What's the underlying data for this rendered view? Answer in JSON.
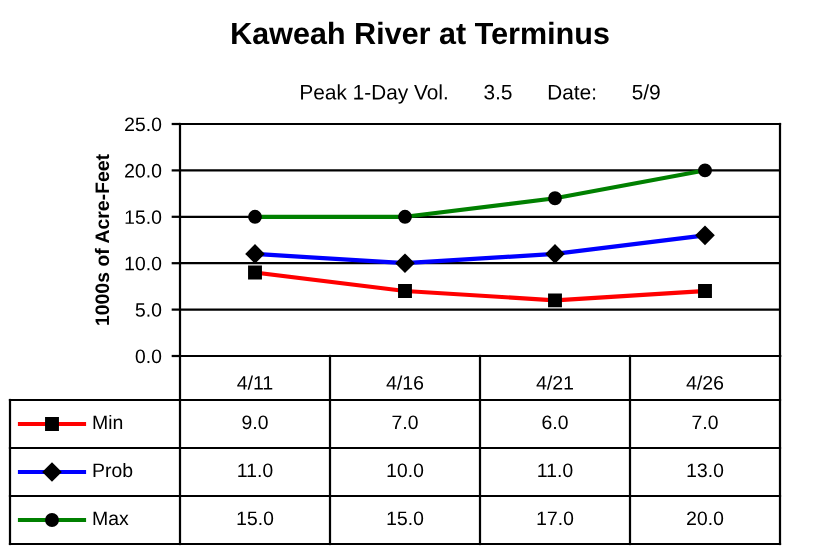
{
  "chart_data": {
    "type": "line",
    "title": "Kaweah River at Terminus",
    "subtitle": "Peak 1-Day Vol.      3.5      Date:      5/9",
    "ylabel": "1000s of Acre-Feet",
    "categories": [
      "4/11",
      "4/16",
      "4/21",
      "4/26"
    ],
    "series": [
      {
        "name": "Min",
        "color": "#ff0000",
        "marker": "square",
        "values": [
          9.0,
          7.0,
          6.0,
          7.0
        ],
        "value_labels": [
          "9.0",
          "7.0",
          "6.0",
          "7.0"
        ]
      },
      {
        "name": "Prob",
        "color": "#0000ff",
        "marker": "diamond",
        "values": [
          11.0,
          10.0,
          11.0,
          13.0
        ],
        "value_labels": [
          "11.0",
          "10.0",
          "11.0",
          "13.0"
        ]
      },
      {
        "name": "Max",
        "color": "#008000",
        "marker": "circle",
        "values": [
          15.0,
          15.0,
          17.0,
          20.0
        ],
        "value_labels": [
          "15.0",
          "15.0",
          "17.0",
          "20.0"
        ]
      }
    ],
    "ylim": [
      0,
      25
    ],
    "yticks": [
      {
        "value": 0,
        "label": "0.0"
      },
      {
        "value": 5,
        "label": "5.0"
      },
      {
        "value": 10,
        "label": "10.0"
      },
      {
        "value": 15,
        "label": "15.0"
      },
      {
        "value": 20,
        "label": "20.0"
      },
      {
        "value": 25,
        "label": "25.0"
      }
    ],
    "grid": "y",
    "legend": "bottom left",
    "line_style": "solid"
  }
}
